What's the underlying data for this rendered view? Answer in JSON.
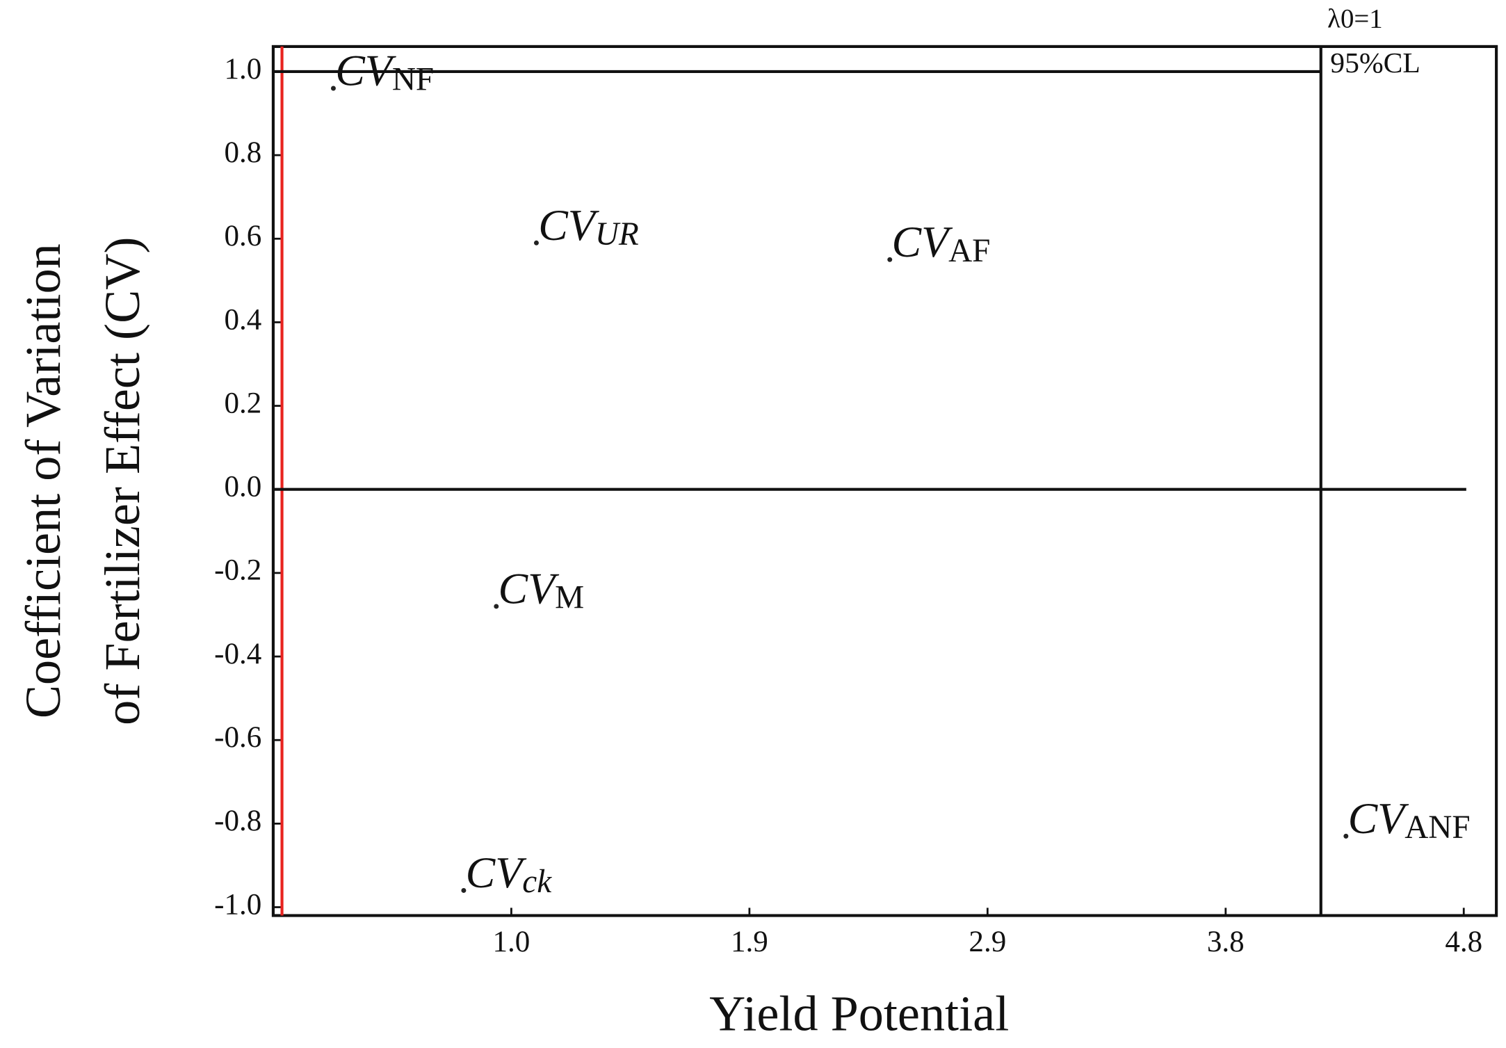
{
  "chart_data": {
    "type": "scatter",
    "xlabel": "Yield Potential",
    "ylabel": [
      "Coefficient of Variation",
      "of Fertilizer Effect (CV)"
    ],
    "label_prefix": "CV",
    "point_labels": [
      "NF",
      "UR",
      "AF",
      "M",
      "ck",
      "ANF"
    ],
    "x": [
      0.24,
      1.05,
      2.46,
      0.89,
      0.76,
      4.28
    ],
    "values": [
      0.96,
      0.59,
      0.55,
      -0.28,
      -0.96,
      -0.83
    ],
    "color": "#222222",
    "xlim": [
      0,
      4.88
    ],
    "ylim": [
      -1.02,
      1.06
    ],
    "xticks": [
      {
        "value": 0.95,
        "label": "1.0"
      },
      1.9,
      {
        "value": 2.85,
        "label": "2.9"
      },
      3.8,
      {
        "value": 4.75,
        "label": "4.8"
      }
    ],
    "yticks": [
      {
        "value": -1,
        "label": "-1.0"
      },
      -0.8,
      -0.6,
      -0.4,
      -0.2,
      {
        "value": 0,
        "label": "0.0"
      },
      0.2,
      0.4,
      0.6,
      0.8,
      {
        "value": 1,
        "label": "1.0"
      }
    ],
    "reference_lines": [
      {
        "axis": "x",
        "value": 0.035,
        "color": "#e8231f"
      },
      {
        "axis": "x",
        "value": 4.18,
        "color": "#111111"
      },
      {
        "axis": "y",
        "value": 1,
        "color": "#111111",
        "to": 4.18
      },
      {
        "axis": "y",
        "value": 0,
        "color": "#111111",
        "to": 4.76
      }
    ],
    "annotations": [
      "λ0=1",
      "95%CL"
    ]
  }
}
